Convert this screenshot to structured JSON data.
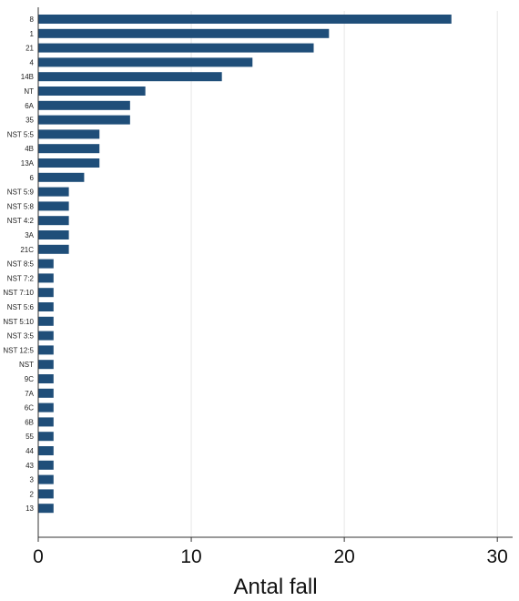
{
  "chart_data": {
    "type": "bar",
    "orientation": "horizontal",
    "categories": [
      "8",
      "1",
      "21",
      "4",
      "14B",
      "NT",
      "6A",
      "35",
      "NST 5:5",
      "4B",
      "13A",
      "6",
      "NST 5:9",
      "NST 5:8",
      "NST 4:2",
      "3A",
      "21C",
      "NST 8:5",
      "NST 7:2",
      "NST 7:10",
      "NST 5:6",
      "NST 5:10",
      "NST 3:5",
      "NST 12:5",
      "NST",
      "9C",
      "7A",
      "6C",
      "6B",
      "55",
      "44",
      "43",
      "3",
      "2",
      "13"
    ],
    "values": [
      27,
      19,
      18,
      14,
      12,
      7,
      6,
      6,
      4,
      4,
      4,
      3,
      2,
      2,
      2,
      2,
      2,
      1,
      1,
      1,
      1,
      1,
      1,
      1,
      1,
      1,
      1,
      1,
      1,
      1,
      1,
      1,
      1,
      1,
      1
    ],
    "xlabel": "Antal fall",
    "ylabel": "",
    "xlim": [
      0,
      31
    ],
    "xticks": [
      "0",
      "10",
      "20",
      "30"
    ],
    "grid": "vertical",
    "bar_color": "#1f4e79",
    "grid_color": "#e6e6e6"
  }
}
